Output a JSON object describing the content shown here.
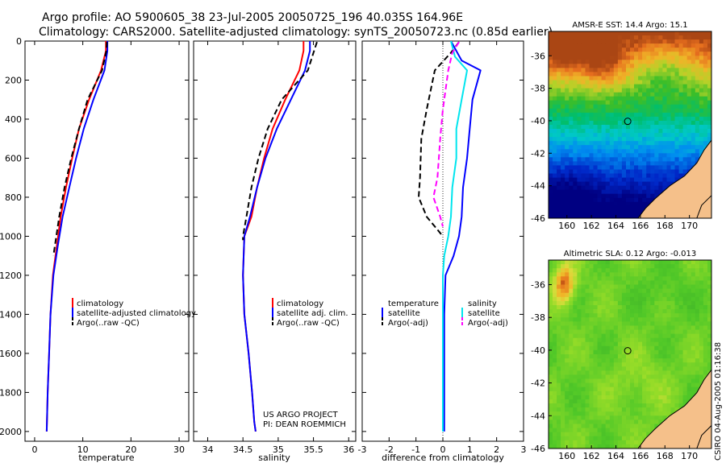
{
  "header": {
    "line1": "Argo profile: AO 5900605_38 23-Jul-2005 20050725_196 40.035S 164.96E",
    "line2": "Climatology: CARS2000. Satellite-adjusted climatology: synTS_20050723.nc (0.85d earlier)"
  },
  "credits": {
    "line1": "US ARGO PROJECT",
    "line2": "PI: DEAN ROEMMICH"
  },
  "side_stamp": "CSIRO 04-Aug-2005 01:16:38",
  "colors": {
    "climatology": "#ff0000",
    "satellite": "#0000ff",
    "argo": "#000000",
    "salinity_satellite": "#00e5ee",
    "salinity_argo": "#ff00ff",
    "land": "#f5c08a"
  },
  "chart_data": [
    {
      "type": "line",
      "xlabel": "temperature",
      "xlim": [
        -2,
        32
      ],
      "ylim": [
        2050,
        0
      ],
      "xticks": [
        0,
        10,
        20,
        30
      ],
      "yticks": [
        0,
        200,
        400,
        600,
        800,
        1000,
        1200,
        1400,
        1600,
        1800,
        2000
      ],
      "legend": [
        "climatology",
        "satellite-adjusted climatology",
        "Argo(..raw -QC)"
      ],
      "series": [
        {
          "name": "climatology",
          "color": "#ff0000",
          "style": "solid",
          "x": [
            14.8,
            14.8,
            13.8,
            11.3,
            9.2,
            7.8,
            6.5,
            5.4,
            4.6,
            3.8,
            3.3,
            3.0,
            2.7,
            2.5
          ],
          "y": [
            0,
            50,
            150,
            300,
            450,
            600,
            750,
            900,
            1050,
            1200,
            1400,
            1600,
            1800,
            2000
          ]
        },
        {
          "name": "satellite-adjusted climatology",
          "color": "#0000ff",
          "style": "solid",
          "x": [
            15.1,
            15.1,
            14.5,
            12.2,
            10.2,
            8.6,
            7.2,
            5.8,
            4.8,
            3.9,
            3.3,
            3.0,
            2.7,
            2.5
          ],
          "y": [
            0,
            50,
            150,
            300,
            450,
            600,
            750,
            900,
            1050,
            1200,
            1400,
            1600,
            1800,
            2000
          ]
        },
        {
          "name": "Argo(..raw -QC)",
          "color": "#000000",
          "style": "dashed",
          "x": [
            15.0,
            14.9,
            14.0,
            11.0,
            9.2,
            7.6,
            6.2,
            5.1,
            4.5,
            3.9
          ],
          "y": [
            5,
            50,
            150,
            300,
            450,
            600,
            750,
            900,
            1000,
            1100
          ]
        }
      ]
    },
    {
      "type": "line",
      "xlabel": "salinity",
      "xlim": [
        33.8,
        36.1
      ],
      "ylim": [
        2050,
        0
      ],
      "xticks": [
        34,
        34.5,
        35,
        35.5,
        36
      ],
      "legend": [
        "climatology",
        "satellite adj. clim.",
        "Argo(..raw -QC)"
      ],
      "series": [
        {
          "name": "climatology",
          "color": "#ff0000",
          "style": "solid",
          "x": [
            35.36,
            35.36,
            35.3,
            35.1,
            34.92,
            34.8,
            34.7,
            34.62,
            34.52,
            34.5,
            34.52,
            34.58,
            34.63,
            34.66,
            34.68
          ],
          "y": [
            0,
            50,
            150,
            300,
            450,
            600,
            750,
            900,
            1000,
            1200,
            1400,
            1600,
            1800,
            1950,
            2000
          ]
        },
        {
          "name": "satellite adj. clim.",
          "color": "#0000ff",
          "style": "solid",
          "x": [
            35.45,
            35.45,
            35.38,
            35.18,
            34.98,
            34.82,
            34.7,
            34.6,
            34.52,
            34.5,
            34.52,
            34.58,
            34.63,
            34.66,
            34.68
          ],
          "y": [
            0,
            50,
            150,
            300,
            450,
            600,
            750,
            900,
            1000,
            1200,
            1400,
            1600,
            1800,
            1950,
            2000
          ]
        },
        {
          "name": "Argo(..raw -QC)",
          "color": "#000000",
          "style": "dashed",
          "x": [
            35.55,
            35.5,
            35.42,
            35.05,
            34.85,
            34.72,
            34.62,
            34.55,
            34.5,
            34.5
          ],
          "y": [
            5,
            60,
            150,
            300,
            450,
            600,
            750,
            900,
            1000,
            1020
          ]
        }
      ]
    },
    {
      "type": "line",
      "xlabel": "difference from climatology",
      "xlim": [
        -3,
        3
      ],
      "ylim": [
        2050,
        0
      ],
      "xticks": [
        -3,
        -2,
        -1,
        0,
        1,
        2,
        3
      ],
      "legend_left": [
        "temperature",
        "satellite",
        "Argo(-adj)"
      ],
      "legend_right": [
        "salinity",
        "satellite",
        "Argo(-adj)"
      ],
      "series": [
        {
          "name": "temperature satellite",
          "color": "#0000ff",
          "style": "solid",
          "x": [
            0.3,
            0.7,
            1.4,
            1.1,
            1.0,
            0.9,
            0.75,
            0.7,
            0.6,
            0.4,
            0.1,
            0.05,
            0.05,
            0.05,
            0.05
          ],
          "y": [
            0,
            100,
            150,
            300,
            450,
            600,
            750,
            900,
            1000,
            1100,
            1200,
            1400,
            1600,
            1800,
            2000
          ]
        },
        {
          "name": "temperature Argo(-adj)",
          "color": "#000000",
          "style": "dashed",
          "x": [
            0.6,
            0.3,
            -0.3,
            -0.6,
            -0.8,
            -0.85,
            -0.9,
            -0.6,
            -0.3,
            0.0
          ],
          "y": [
            5,
            60,
            150,
            350,
            500,
            700,
            800,
            900,
            950,
            1000
          ]
        },
        {
          "name": "salinity satellite",
          "color": "#00e5ee",
          "style": "solid",
          "x": [
            0.3,
            0.45,
            0.9,
            0.7,
            0.5,
            0.5,
            0.35,
            0.3,
            0.2,
            0.05,
            0.0,
            0.0,
            0.0,
            0.0,
            0.0
          ],
          "y": [
            0,
            80,
            150,
            300,
            450,
            600,
            750,
            900,
            1000,
            1100,
            1200,
            1400,
            1600,
            1800,
            2000
          ]
        },
        {
          "name": "salinity Argo(-adj)",
          "color": "#ff00ff",
          "style": "dashed",
          "x": [
            0.6,
            0.35,
            0.2,
            0.0,
            -0.1,
            -0.2,
            -0.35,
            -0.1,
            0.0
          ],
          "y": [
            5,
            60,
            150,
            350,
            500,
            700,
            800,
            900,
            950
          ]
        }
      ]
    },
    {
      "type": "heatmap",
      "title": "AMSR-E SST: 14.4 Argo: 15.1",
      "xticks": [
        160,
        162,
        164,
        166,
        168,
        170
      ],
      "yticks": [
        -36,
        -38,
        -40,
        -42,
        -44,
        -46
      ],
      "xlim": [
        158.5,
        171.8
      ],
      "ylim": [
        -46,
        -34.5
      ],
      "marker": {
        "lon": 164.96,
        "lat": -40.035
      }
    },
    {
      "type": "heatmap",
      "title": "Altimetric SLA: 0.12 Argo: -0.013",
      "xticks": [
        160,
        162,
        164,
        166,
        168,
        170
      ],
      "yticks": [
        -36,
        -38,
        -40,
        -42,
        -44,
        -46
      ],
      "xlim": [
        158.5,
        171.8
      ],
      "ylim": [
        -46,
        -34.5
      ],
      "marker": {
        "lon": 164.96,
        "lat": -40.035
      }
    }
  ]
}
